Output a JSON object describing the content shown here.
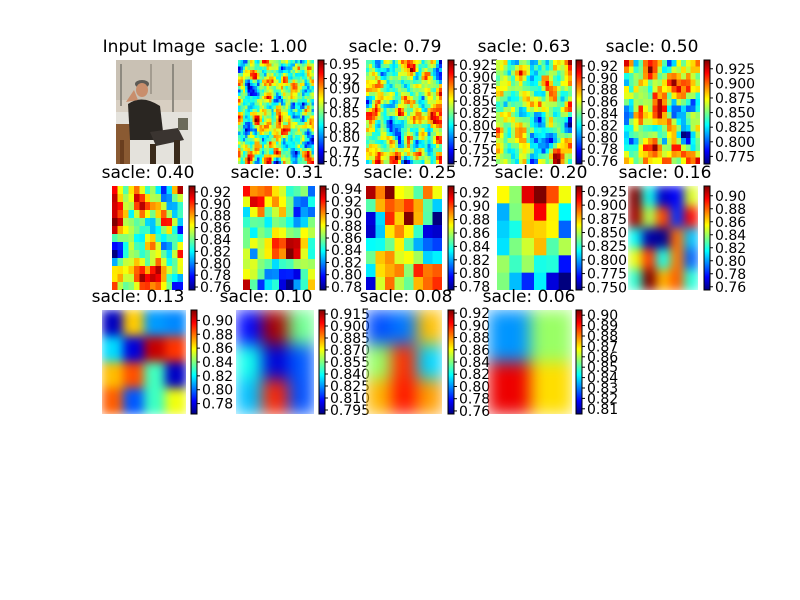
{
  "figure": {
    "input_panel_title": "Input Image"
  },
  "colors": {
    "background": "#ffffff",
    "colormap": "jet",
    "colormap_stops": [
      "#00007f",
      "#0000ff",
      "#007fff",
      "#00ffff",
      "#7fff7f",
      "#ffff00",
      "#ff7f00",
      "#ff0000",
      "#7f0000"
    ]
  },
  "chart_data": [
    {
      "type": "heatmap",
      "title": "sacle: 1.00",
      "scale": 1.0,
      "grid": [
        32,
        32
      ],
      "colorbar_ticks": [
        "0.95",
        "0.92",
        "0.90",
        "0.87",
        "0.85",
        "0.82",
        "0.80",
        "0.77",
        "0.75"
      ],
      "vmin": 0.745,
      "vmax": 0.958
    },
    {
      "type": "heatmap",
      "title": "sacle: 0.79",
      "scale": 0.79,
      "grid": [
        26,
        26
      ],
      "colorbar_ticks": [
        "0.925",
        "0.900",
        "0.875",
        "0.850",
        "0.825",
        "0.800",
        "0.775",
        "0.750",
        "0.725"
      ],
      "vmin": 0.72,
      "vmax": 0.935
    },
    {
      "type": "heatmap",
      "title": "sacle: 0.63",
      "scale": 0.63,
      "grid": [
        20,
        20
      ],
      "colorbar_ticks": [
        "0.92",
        "0.90",
        "0.88",
        "0.86",
        "0.84",
        "0.82",
        "0.80",
        "0.78",
        "0.76"
      ],
      "vmin": 0.755,
      "vmax": 0.93
    },
    {
      "type": "heatmap",
      "title": "sacle: 0.50",
      "scale": 0.5,
      "grid": [
        16,
        16
      ],
      "colorbar_ticks": [
        "0.925",
        "0.900",
        "0.875",
        "0.850",
        "0.825",
        "0.800",
        "0.775"
      ],
      "vmin": 0.762,
      "vmax": 0.94
    },
    {
      "type": "heatmap",
      "title": "sacle: 0.40",
      "scale": 0.4,
      "grid": [
        13,
        13
      ],
      "colorbar_ticks": [
        "0.92",
        "0.90",
        "0.88",
        "0.86",
        "0.84",
        "0.82",
        "0.80",
        "0.78",
        "0.76"
      ],
      "vmin": 0.755,
      "vmax": 0.93
    },
    {
      "type": "heatmap",
      "title": "sacle: 0.31",
      "scale": 0.31,
      "grid": [
        10,
        10
      ],
      "colorbar_ticks": [
        "0.94",
        "0.92",
        "0.90",
        "0.88",
        "0.86",
        "0.84",
        "0.82",
        "0.80",
        "0.78"
      ],
      "vmin": 0.775,
      "vmax": 0.945
    },
    {
      "type": "heatmap",
      "title": "sacle: 0.25",
      "scale": 0.25,
      "grid": [
        8,
        8
      ],
      "colorbar_ticks": [
        "0.92",
        "0.90",
        "0.88",
        "0.86",
        "0.84",
        "0.82",
        "0.80",
        "0.78"
      ],
      "vmin": 0.775,
      "vmax": 0.93
    },
    {
      "type": "heatmap",
      "title": "sacle: 0.20",
      "scale": 0.2,
      "grid": [
        6,
        6
      ],
      "colorbar_ticks": [
        "0.925",
        "0.900",
        "0.875",
        "0.850",
        "0.825",
        "0.800",
        "0.775",
        "0.750"
      ],
      "vmin": 0.745,
      "vmax": 0.935
    },
    {
      "type": "heatmap",
      "title": "sacle: 0.16",
      "scale": 0.16,
      "grid": [
        5,
        5
      ],
      "colorbar_ticks": [
        "0.90",
        "0.88",
        "0.86",
        "0.84",
        "0.82",
        "0.80",
        "0.78",
        "0.76"
      ],
      "vmin": 0.755,
      "vmax": 0.915
    },
    {
      "type": "heatmap",
      "title": "sacle: 0.13",
      "scale": 0.13,
      "grid": [
        4,
        4
      ],
      "colorbar_ticks": [
        "0.90",
        "0.88",
        "0.86",
        "0.84",
        "0.82",
        "0.80",
        "0.78"
      ],
      "vmin": 0.765,
      "vmax": 0.915
    },
    {
      "type": "heatmap",
      "title": "sacle: 0.10",
      "scale": 0.1,
      "grid": [
        3,
        3
      ],
      "colorbar_ticks": [
        "0.915",
        "0.900",
        "0.885",
        "0.870",
        "0.855",
        "0.840",
        "0.825",
        "0.810",
        "0.795"
      ],
      "vmin": 0.79,
      "vmax": 0.92
    },
    {
      "type": "heatmap",
      "title": "sacle: 0.08",
      "scale": 0.08,
      "grid": [
        3,
        3
      ],
      "colorbar_ticks": [
        "0.92",
        "0.90",
        "0.88",
        "0.86",
        "0.84",
        "0.82",
        "0.80",
        "0.78",
        "0.76"
      ],
      "vmin": 0.755,
      "vmax": 0.925
    },
    {
      "type": "heatmap",
      "title": "sacle: 0.06",
      "scale": 0.06,
      "grid": [
        2,
        2
      ],
      "colorbar_ticks": [
        "0.90",
        "0.89",
        "0.88",
        "0.87",
        "0.86",
        "0.85",
        "0.84",
        "0.83",
        "0.82",
        "0.81"
      ],
      "vmin": 0.805,
      "vmax": 0.905
    }
  ]
}
